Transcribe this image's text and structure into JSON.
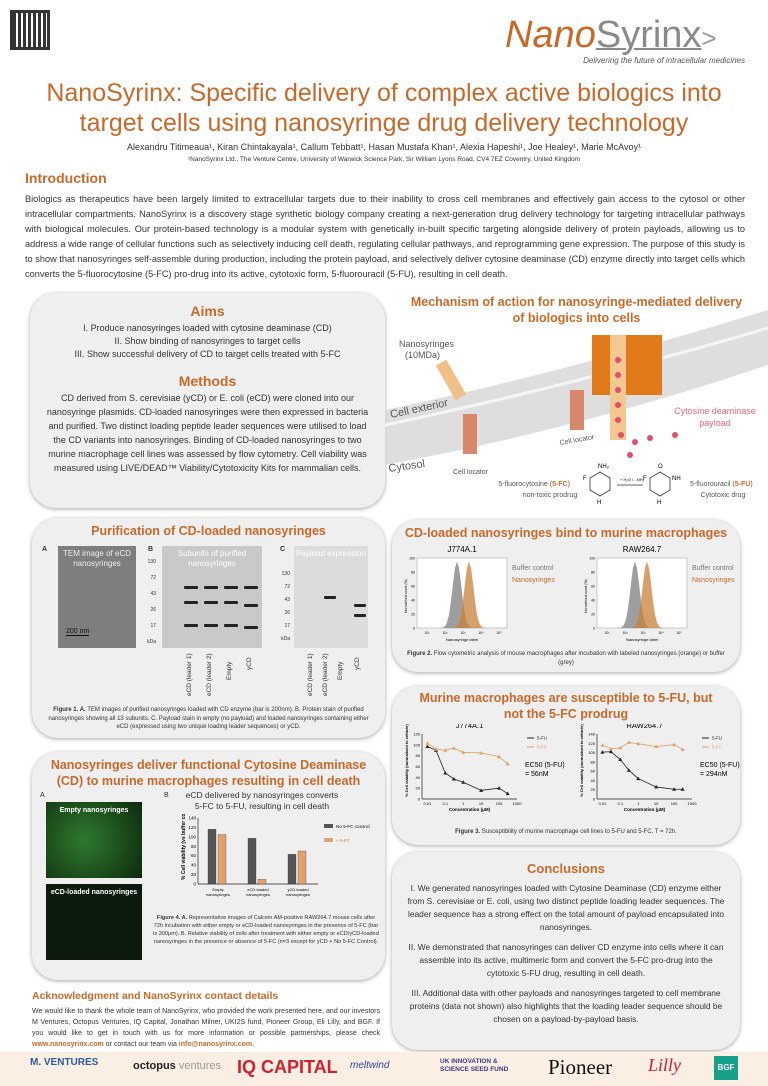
{
  "header": {
    "logo_nano": "Nano",
    "logo_syrinx": "Syrinx",
    "tagline": "Delivering the future of intracellular medicines",
    "title": "NanoSyrinx: Specific delivery of complex active biologics into target cells using nanosyringe drug delivery technology",
    "authors": "Alexandru Titimeaua¹, Kiran Chintakayala¹, Callum Tebbatt¹, Hasan Mustafa Khan¹, Alexia Hapeshi¹, Joe Healey¹, Marie McAvoy¹",
    "affiliation": "¹NanoSyrinx Ltd., The Venture Centre, University of Warwick Science Park, Sir William Lyons Road, CV4 7EZ Coventry, United Kingdom"
  },
  "intro": {
    "heading": "Introduction",
    "text": "Biologics as therapeutics have been largely limited to extracellular targets due to their inability to cross cell membranes and effectively gain access to the cytosol or other intracellular compartments. NanoSyrinx is a discovery stage synthetic biology company creating a next-generation drug delivery technology for targeting intracellular pathways with biological molecules. Our protein-based technology is a modular system with genetically in-built specific targeting alongside delivery of protein payloads, allowing us to address a wide range of cellular functions such as selectively inducing cell death, regulating cellular pathways, and reprogramming gene expression. The purpose of this study is to show that nanosyringes self-assemble during production, including the protein payload, and selectively deliver cytosine deaminase (CD) enzyme directly into target cells which converts the 5-fluorocytosine (5-FC) pro-drug into its active, cytotoxic form, 5-fluorouracil (5-FU), resulting in cell death."
  },
  "aims": {
    "heading": "Aims",
    "items": [
      "I.   Produce nanosyringes loaded with cytosine deaminase (CD)",
      "II.  Show binding of nanosyringes to target cells",
      "III.  Show successful delivery of CD to target cells treated with 5-FC"
    ]
  },
  "methods": {
    "heading": "Methods",
    "text": "CD derived from S. cerevisiae (yCD) or E. coli (eCD) were cloned into our nanosyringe plasmids. CD-loaded nanosyringes were then expressed in bacteria and purified. Two distinct loading peptide leader sequences were utilised to load the CD variants into nanosyringes. Binding of CD-loaded nanosyringes to two murine macrophage cell lines was assessed by flow cytometry. Cell viability was measured using LIVE/DEAD™ Viability/Cytotoxicity Kits for mammalian cells."
  },
  "mechanism": {
    "heading": "Mechanism of action for nanosyringe-mediated delivery of biologics into cells",
    "nanosyringes": "Nanosyringes",
    "size": "(10MDa)",
    "cell_exterior": "Cell exterior",
    "cytosol": "Cytosol",
    "cell_locator": "Cell locator",
    "payload": "Cytosine deaminase",
    "payload2": "payload",
    "prodrug": "5-fluorocytosine (",
    "prodrug_abbr": "5-FC",
    "prodrug_close": ")",
    "prodrug_sub": "non-toxic prodrug",
    "drug": "5-fluorouracil (",
    "drug_abbr": "5-FU",
    "drug_close": ")",
    "drug_sub": "Cytotoxic drug",
    "reaction": "+ H₂O / - NH₃",
    "nh2": "NH₂",
    "o": "O",
    "f": "F",
    "n": "N",
    "nh": "NH",
    "h": "H"
  },
  "purification": {
    "heading": "Purification of CD-loaded nanosyringes",
    "panel_a": "A",
    "panel_b": "B",
    "panel_c": "C",
    "tem_label": "TEM image of eCD nanosyringes",
    "scale": "200 nm",
    "gel_b_label": "Subunits of purified nanosyringes",
    "gel_c_label": "Payload expression",
    "kda_ticks": [
      "130",
      "72",
      "43",
      "26",
      "17"
    ],
    "kda": "kDa",
    "lanes": [
      "eCD (leader 1)",
      "eCD (leader 2)",
      "Empty",
      "yCD"
    ],
    "caption_bold": "Figure 1. A.",
    "caption": " TEM images of purified nanosyringes loaded with CD enzyme (bar is 200nm). B. Protein stain of purified nanosyringes showing all 13 subunits. C. Payload stain in empty (no payload) and loaded nanosyringes containing either eCD (expressed using two unique loading leader sequences) or yCD."
  },
  "binding": {
    "heading": "CD-loaded nanosyringes bind to murine macrophages",
    "panels": [
      "J774A.1",
      "RAW264.7"
    ],
    "legend": [
      "Buffer control",
      "Nanosyringes"
    ],
    "ylabel": "Normalised count (%)",
    "xlabel": "Nanosyringe label",
    "yticks": [
      "0",
      "20",
      "40",
      "60",
      "80",
      "100"
    ],
    "xticks": [
      "10¹",
      "10²",
      "10³",
      "10⁴",
      "10⁵"
    ],
    "colors": {
      "buffer": "#7d7d7d",
      "nanosyringes": "#c8803a"
    },
    "caption_bold": "Figure 2.",
    "caption": " Flow cytometric analysis of mouse macrophages after incubation with labeled nanosyringes (orange) or buffer (grey)"
  },
  "susceptibility": {
    "heading": "Murine macrophages are susceptible to 5-FU, but not the 5-FC prodrug",
    "caption_bold": "Figure 3.",
    "caption": " Susceptibility of murine macrophage cell lines to 5-FU and 5-FC, T = 72h."
  },
  "chart_data": [
    {
      "type": "line",
      "title": "J774A.1",
      "xlabel": "Concentration (μM)",
      "ylabel": "% Cell viability (normalised to vehicle)",
      "xscale": "log",
      "xticks": [
        "0.01",
        "0.1",
        "1",
        "10",
        "100",
        "1000"
      ],
      "ylim": [
        0,
        120
      ],
      "yticks": [
        "0",
        "20",
        "40",
        "60",
        "80",
        "100",
        "120"
      ],
      "x": [
        0.01,
        0.03,
        0.1,
        0.3,
        1,
        10,
        100,
        300
      ],
      "series": [
        {
          "name": "5-FU",
          "color": "#222222",
          "values": [
            97,
            90,
            48,
            37,
            31,
            16,
            20,
            10
          ]
        },
        {
          "name": "5-FC",
          "color": "#e0a060",
          "values": [
            103,
            92,
            90,
            94,
            86,
            85,
            78,
            65
          ]
        }
      ],
      "annotation": "EC50 (5-FU) = 56nM"
    },
    {
      "type": "line",
      "title": "RAW264.7",
      "xlabel": "Concentration (μM)",
      "ylabel": "% Cell viability (normalised to vehicle)",
      "xscale": "log",
      "xticks": [
        "0.01",
        "0.1",
        "1",
        "10",
        "100",
        "1000"
      ],
      "ylim": [
        0,
        140
      ],
      "yticks": [
        "0",
        "20",
        "40",
        "60",
        "80",
        "100",
        "120",
        "140"
      ],
      "x": [
        0.01,
        0.03,
        0.1,
        0.3,
        1,
        10,
        100,
        300
      ],
      "series": [
        {
          "name": "5-FU",
          "color": "#222222",
          "values": [
            101,
            102,
            85,
            62,
            44,
            26,
            21,
            21
          ]
        },
        {
          "name": "5-FC",
          "color": "#e0a060",
          "values": [
            116,
            108,
            110,
            122,
            119,
            113,
            117,
            107
          ]
        }
      ],
      "annotation": "EC50 (5-FU) = 294nM"
    },
    {
      "type": "bar",
      "title": "eCD delivered by nanosyringes converts 5-FC to 5-FU, resulting in cell death",
      "ylabel": "% Cell viability (vs buffer control)",
      "ylim": [
        0,
        140
      ],
      "yticks": [
        "0",
        "20",
        "40",
        "60",
        "80",
        "100",
        "120",
        "140"
      ],
      "categories": [
        "Empty nanosyringes",
        "eCD-loaded nanosyringes",
        "yCD-loaded nanosyringes"
      ],
      "series": [
        {
          "name": "No 5-FC control",
          "color": "#555555",
          "values": [
            116,
            97,
            63
          ]
        },
        {
          "name": "+ 5-FC",
          "color": "#e0a070",
          "values": [
            105,
            10,
            70
          ]
        }
      ]
    }
  ],
  "delivery": {
    "heading": "Nanosyringes deliver functional Cytosine Deaminase (CD) to murine macrophages resulting in cell death",
    "panel_a": "A",
    "panel_b": "B",
    "img1": "Empty nanosyringes",
    "img2": "eCD-loaded nanosyringes",
    "caption_bold": "Figure 4. A.",
    "caption": " Representative images of Calcein AM-positive RAW264.7 mouse cells after 72h incubation with either empty or eCD-loaded nanosyringes in the presence of 5-FC (bar is 300μm). B. Relative viability of cells after treatment with either empty or eCD/yCD-loaded nanosyringes in the presence or absence of 5-FC (n=3 except for yCD + No 5-FC Control)."
  },
  "conclusions": {
    "heading": "Conclusions",
    "items": [
      "I.  We generated nanosyringes loaded with Cytosine Deaminase (CD) enzyme either from S. cerevisiae or E. coli, using two distinct peptide loading leader sequences. The leader sequence has a strong effect on the total amount of payload encapsulated into nanosyringes.",
      "II.  We demonstrated that nanosyringes can deliver CD enzyme into cells where it can assemble into its active, multimeric form and convert the 5-FC pro-drug into the cytotoxic 5-FU drug, resulting in cell death.",
      "III.  Additional data with other payloads and nanosyringes targeted to cell membrane proteins (data not shown) also highlights that the loading leader sequence should be chosen on a payload-by-payload basis."
    ]
  },
  "ack": {
    "heading": "Acknowledgment and NanoSyrinx contact details",
    "text": "We would like to thank the whole team of NanoSyrinx, who provided the work presented here, and our investors M Ventures, Octopus Ventures, IQ Capital, Jonathan Milner, UKI2S fund, Pioneer Group, Eli Lilly, and BGF. If you would like to get in touch with us for more information or possible partnerships, please check ",
    "website": "www.nanosyrinx.com",
    "mid": " or contact our team via ",
    "email": "info@nanosyrinx.com",
    "end": "."
  },
  "sponsors": {
    "mventures": "M. VENTURES",
    "octopus": "octopus",
    "octopus2": "ventures",
    "iq": "IQ CAPITAL",
    "meltwind": "meltwind",
    "uki2s": "UK INNOVATION & SCIENCE SEED FUND",
    "pioneer": "Pioneer",
    "lilly": "Lilly",
    "bgf": "BGF"
  },
  "colors": {
    "accent": "#c8692a",
    "panel": "#efefef"
  }
}
